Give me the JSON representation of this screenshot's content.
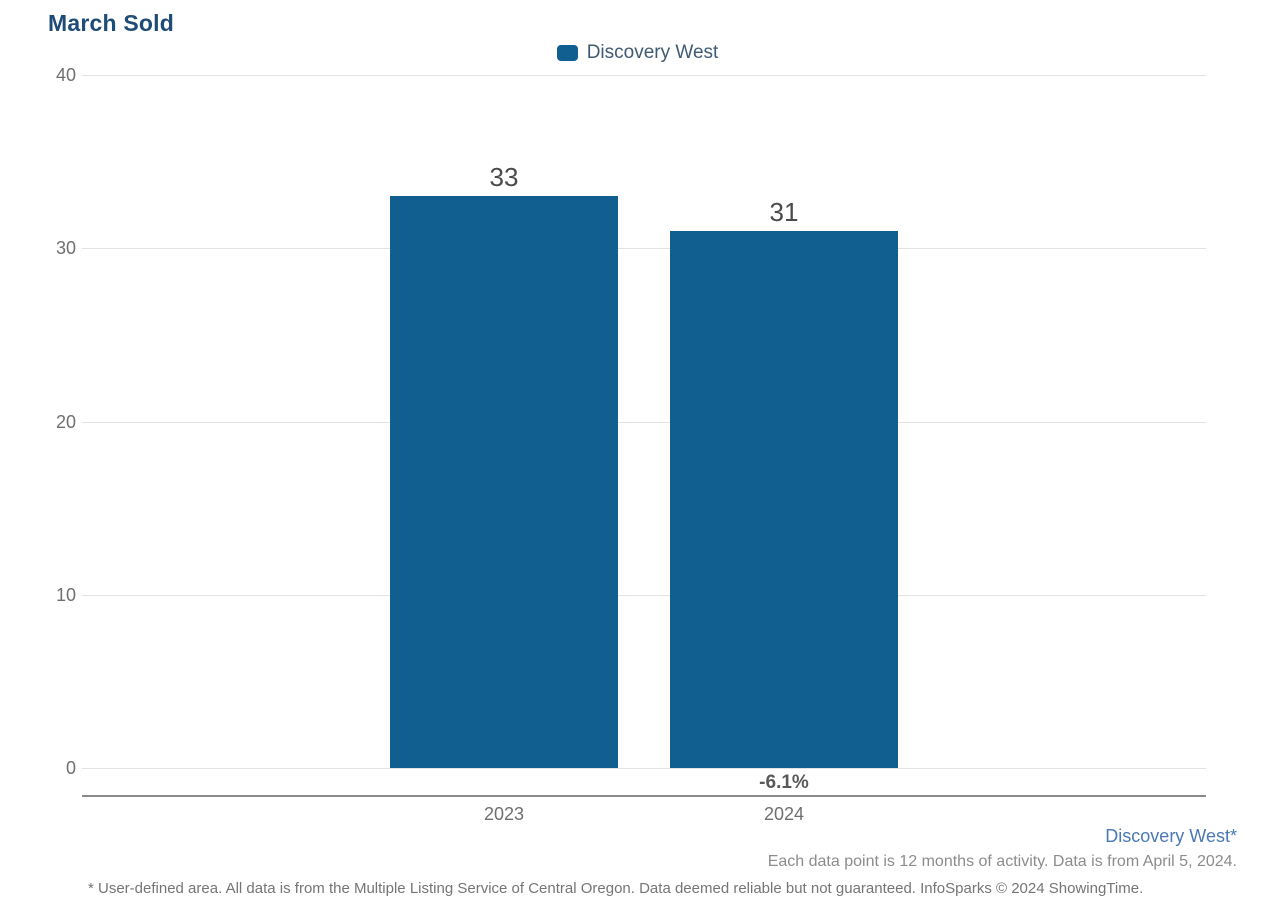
{
  "chart_data": {
    "type": "bar",
    "title": "March Sold",
    "categories": [
      "2023",
      "2024"
    ],
    "series": [
      {
        "name": "Discovery West",
        "color": "#115e90",
        "values": [
          33,
          31
        ]
      }
    ],
    "value_labels": [
      "33",
      "31"
    ],
    "change_labels": [
      "",
      "-6.1%"
    ],
    "yticks": [
      0,
      10,
      20,
      30,
      40
    ],
    "ylim": [
      0,
      40
    ],
    "grid": true,
    "legend_position": "top-center",
    "xlabel": "",
    "ylabel": ""
  },
  "footer": {
    "area_label": "Discovery West*",
    "data_note": "Each data point is 12 months of activity. Data is from April 5, 2024.",
    "disclaimer": "* User-defined area. All data is from the Multiple Listing Service of Central Oregon. Data deemed reliable but not guaranteed. InfoSparks © 2024 ShowingTime."
  },
  "colors": {
    "bar": "#115e90",
    "title": "#1f4b77",
    "legend_text": "#3f5a73",
    "axis_label": "#6f6f6f",
    "value_label": "#4a4a4a",
    "change_label": "#595959",
    "gridline": "#e3e3e3",
    "axis_line": "#8a8a8a",
    "footer_link": "#4a79b6",
    "footer_text": "#8c8c8c"
  }
}
